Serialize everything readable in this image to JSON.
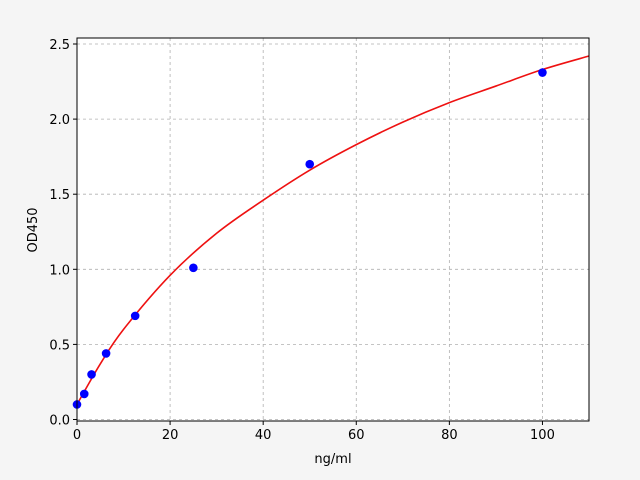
{
  "chart_data": {
    "type": "scatter",
    "title": "",
    "xlabel": "ng/ml",
    "ylabel": "OD450",
    "xlim": [
      0,
      110
    ],
    "ylim": [
      -0.01,
      2.54
    ],
    "xticks": [
      0,
      20,
      40,
      60,
      80,
      100
    ],
    "yticks": [
      0.0,
      0.5,
      1.0,
      1.5,
      2.0,
      2.5
    ],
    "xtick_labels": [
      "0",
      "20",
      "40",
      "60",
      "80",
      "100"
    ],
    "ytick_labels": [
      "0.0",
      "0.5",
      "1.0",
      "1.5",
      "2.0",
      "2.5"
    ],
    "grid": true,
    "points": {
      "x": [
        0,
        1.56,
        3.125,
        6.25,
        12.5,
        25,
        50,
        100
      ],
      "y": [
        0.1,
        0.17,
        0.3,
        0.44,
        0.69,
        1.01,
        1.7,
        2.31
      ],
      "color": "#0000ff"
    },
    "fit_curve": {
      "x": [
        0,
        5,
        10,
        20,
        30,
        40,
        50,
        60,
        70,
        80,
        90,
        100,
        110
      ],
      "y": [
        0.1,
        0.37,
        0.6,
        0.96,
        1.24,
        1.46,
        1.66,
        1.83,
        1.98,
        2.11,
        2.22,
        2.33,
        2.42
      ],
      "color": "#ee1111"
    }
  }
}
